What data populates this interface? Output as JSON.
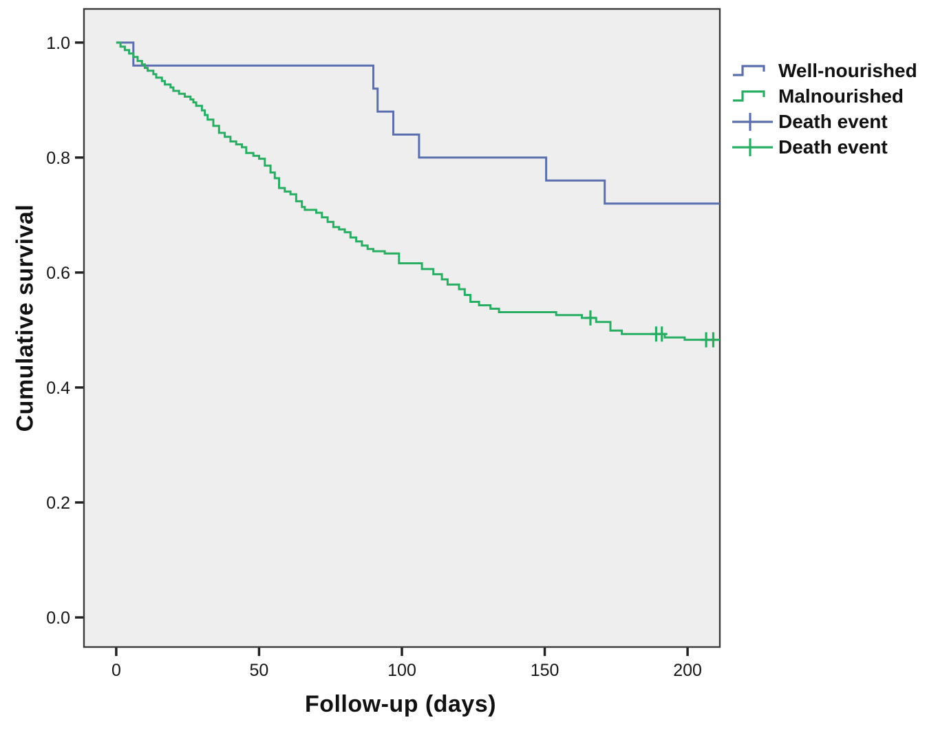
{
  "chart_data": {
    "type": "line",
    "subtype": "kaplan-meier-step",
    "title": "",
    "xlabel": "Follow-up (days)",
    "ylabel": "Cumulative survival",
    "xlim": [
      -11.3,
      211.3
    ],
    "ylim": [
      -0.0515,
      1.0585
    ],
    "grid": false,
    "legend_position": "right",
    "colors": {
      "plot_bg": "#eeeeee",
      "frame": "#3a3a3a",
      "axis": "#222222",
      "text": "#151515",
      "well_nourished": "#5b6fae",
      "malnourished": "#29ad63"
    },
    "xticks": [
      {
        "value": 0,
        "label": "0"
      },
      {
        "value": 50,
        "label": "50"
      },
      {
        "value": 100,
        "label": "100"
      },
      {
        "value": 150,
        "label": "150"
      },
      {
        "value": 200,
        "label": "200"
      }
    ],
    "yticks": [
      {
        "value": 0.0,
        "label": "0.0"
      },
      {
        "value": 0.2,
        "label": "0.2"
      },
      {
        "value": 0.4,
        "label": "0.4"
      },
      {
        "value": 0.6,
        "label": "0.6"
      },
      {
        "value": 0.8,
        "label": "0.8"
      },
      {
        "value": 1.0,
        "label": "1.0"
      }
    ],
    "series": [
      {
        "name": "Well-nourished",
        "color": "#5b6fae",
        "points": [
          [
            0,
            1.0
          ],
          [
            6,
            0.96
          ],
          [
            90,
            0.92
          ],
          [
            91.5,
            0.88
          ],
          [
            97,
            0.84
          ],
          [
            106,
            0.8
          ],
          [
            150.5,
            0.76
          ],
          [
            171,
            0.72
          ],
          [
            211.3,
            0.72
          ]
        ]
      },
      {
        "name": "Malnourished",
        "color": "#29ad63",
        "points": [
          [
            0,
            1.0
          ],
          [
            1.5,
            0.993
          ],
          [
            3,
            0.987
          ],
          [
            4.5,
            0.981
          ],
          [
            6,
            0.975
          ],
          [
            7.5,
            0.968
          ],
          [
            9,
            0.962
          ],
          [
            10,
            0.956
          ],
          [
            11,
            0.951
          ],
          [
            13,
            0.945
          ],
          [
            14,
            0.939
          ],
          [
            16,
            0.933
          ],
          [
            17,
            0.927
          ],
          [
            19,
            0.922
          ],
          [
            20,
            0.916
          ],
          [
            22,
            0.911
          ],
          [
            24,
            0.906
          ],
          [
            26,
            0.901
          ],
          [
            27,
            0.896
          ],
          [
            28,
            0.89
          ],
          [
            30,
            0.882
          ],
          [
            31,
            0.874
          ],
          [
            32,
            0.866
          ],
          [
            34,
            0.855
          ],
          [
            36,
            0.843
          ],
          [
            38,
            0.836
          ],
          [
            40,
            0.828
          ],
          [
            42,
            0.823
          ],
          [
            44,
            0.818
          ],
          [
            45.5,
            0.808
          ],
          [
            48,
            0.803
          ],
          [
            50,
            0.798
          ],
          [
            52,
            0.786
          ],
          [
            54,
            0.774
          ],
          [
            55.5,
            0.764
          ],
          [
            57,
            0.747
          ],
          [
            59,
            0.741
          ],
          [
            61,
            0.736
          ],
          [
            63,
            0.724
          ],
          [
            65,
            0.714
          ],
          [
            66,
            0.709
          ],
          [
            70,
            0.704
          ],
          [
            72,
            0.696
          ],
          [
            74,
            0.688
          ],
          [
            76,
            0.679
          ],
          [
            78,
            0.675
          ],
          [
            80,
            0.67
          ],
          [
            82,
            0.661
          ],
          [
            84,
            0.654
          ],
          [
            86,
            0.647
          ],
          [
            88,
            0.641
          ],
          [
            90,
            0.637
          ],
          [
            94,
            0.633
          ],
          [
            99,
            0.616
          ],
          [
            107,
            0.606
          ],
          [
            111,
            0.597
          ],
          [
            114,
            0.588
          ],
          [
            116,
            0.579
          ],
          [
            120,
            0.571
          ],
          [
            122,
            0.561
          ],
          [
            124,
            0.549
          ],
          [
            127,
            0.543
          ],
          [
            131,
            0.537
          ],
          [
            134,
            0.531
          ],
          [
            154,
            0.526
          ],
          [
            163,
            0.521
          ],
          [
            168,
            0.514
          ],
          [
            173,
            0.499
          ],
          [
            177,
            0.493
          ],
          [
            192,
            0.487
          ],
          [
            199,
            0.483
          ],
          [
            211.3,
            0.483
          ]
        ]
      }
    ],
    "censor_marks": [
      {
        "series": "Malnourished",
        "color": "#29ad63",
        "points": [
          [
            166,
            0.521
          ],
          [
            189,
            0.493
          ],
          [
            191,
            0.493
          ],
          [
            206.5,
            0.483
          ],
          [
            209,
            0.483
          ]
        ]
      }
    ],
    "legend": [
      {
        "label": "Well-nourished",
        "marker": "step-line",
        "color": "#5b6fae"
      },
      {
        "label": "Malnourished",
        "marker": "step-line",
        "color": "#29ad63"
      },
      {
        "label": "Death event",
        "marker": "plus-line",
        "color": "#5b6fae"
      },
      {
        "label": "Death event",
        "marker": "plus-line",
        "color": "#29ad63"
      }
    ]
  }
}
